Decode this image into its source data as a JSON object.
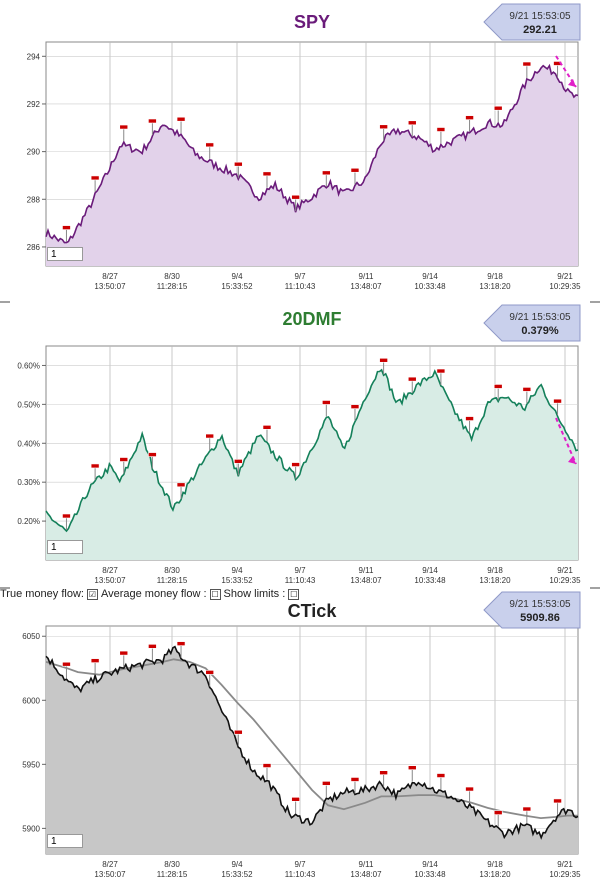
{
  "colors": {
    "spy_line": "#6a1b7a",
    "spy_fill": "#e2d2ea",
    "mf_line": "#14805a",
    "mf_fill": "#d8ece5",
    "ct_line": "#111111",
    "ct_fill": "#c7c7c7",
    "ct_avg": "#8a8a8a",
    "marker_red": "#cc0000",
    "arrow_magenta": "#e020c8",
    "badge_fill": "#c9d0ec"
  },
  "x_ticks": [
    {
      "date": "8/27",
      "time": "13:50:07"
    },
    {
      "date": "8/30",
      "time": "11:28:15"
    },
    {
      "date": "9/4",
      "time": "15:33:52"
    },
    {
      "date": "9/7",
      "time": "11:10:43"
    },
    {
      "date": "9/11",
      "time": "13:48:07"
    },
    {
      "date": "9/14",
      "time": "10:33:48"
    },
    {
      "date": "9/18",
      "time": "13:18:20"
    },
    {
      "date": "9/21",
      "time": "10:29:35"
    }
  ],
  "panels": {
    "spy": {
      "title": "SPY",
      "badge_time": "9/21 15:53:05",
      "badge_value": "292.21",
      "period": "1"
    },
    "mf": {
      "title": "20DMF",
      "badge_time": "9/21 15:53:05",
      "badge_value": "0.379%",
      "period": "1"
    },
    "ct": {
      "title": "CTick",
      "badge_time": "9/21 15:53:05",
      "badge_value": "5909.86",
      "period": "1"
    }
  },
  "controls": {
    "true_mf_label": "True money flow:",
    "avg_mf_label": "Average money flow :",
    "show_limits_label": "Show limits :",
    "true_mf_checked": "☑",
    "avg_mf_checked": "☐",
    "show_limits_checked": "☐"
  },
  "chart_data": [
    {
      "type": "area",
      "title": "SPY",
      "ylim": [
        285.2,
        294.6
      ],
      "yticks": [
        286,
        288,
        290,
        292,
        294
      ],
      "x": [
        0,
        0.04,
        0.08,
        0.12,
        0.14,
        0.18,
        0.22,
        0.26,
        0.28,
        0.32,
        0.36,
        0.4,
        0.43,
        0.47,
        0.5,
        0.53,
        0.56,
        0.6,
        0.63,
        0.66,
        0.7,
        0.73,
        0.76,
        0.8,
        0.83,
        0.86,
        0.9,
        0.93,
        0.96,
        0.98,
        1.0
      ],
      "values": [
        286.6,
        286.1,
        287.6,
        289.3,
        290.3,
        290.0,
        291.2,
        290.5,
        289.9,
        289.4,
        289.0,
        288.1,
        288.6,
        287.6,
        288.1,
        288.7,
        288.2,
        288.8,
        290.4,
        290.9,
        290.6,
        290.1,
        290.4,
        290.8,
        291.2,
        291.1,
        292.8,
        293.6,
        293.3,
        292.5,
        292.2
      ]
    },
    {
      "type": "area",
      "title": "20DMF",
      "ylim": [
        0.1,
        0.65
      ],
      "yticks": [
        "0.20%",
        "0.30%",
        "0.40%",
        "0.50%",
        "0.60%"
      ],
      "x": [
        0,
        0.04,
        0.08,
        0.12,
        0.14,
        0.18,
        0.2,
        0.24,
        0.27,
        0.3,
        0.33,
        0.36,
        0.4,
        0.43,
        0.47,
        0.5,
        0.53,
        0.56,
        0.6,
        0.63,
        0.66,
        0.7,
        0.73,
        0.76,
        0.8,
        0.83,
        0.86,
        0.9,
        0.93,
        0.96,
        0.98,
        1.0
      ],
      "values": [
        0.22,
        0.17,
        0.28,
        0.34,
        0.3,
        0.42,
        0.34,
        0.23,
        0.3,
        0.36,
        0.42,
        0.32,
        0.42,
        0.37,
        0.31,
        0.39,
        0.47,
        0.38,
        0.52,
        0.6,
        0.5,
        0.55,
        0.58,
        0.5,
        0.41,
        0.5,
        0.52,
        0.49,
        0.55,
        0.47,
        0.43,
        0.38
      ]
    },
    {
      "type": "area",
      "title": "CTick",
      "ylim": [
        5880,
        6058
      ],
      "yticks": [
        5900,
        5950,
        6000,
        6050
      ],
      "x": [
        0,
        0.04,
        0.06,
        0.1,
        0.14,
        0.18,
        0.22,
        0.24,
        0.27,
        0.3,
        0.33,
        0.36,
        0.39,
        0.42,
        0.46,
        0.5,
        0.53,
        0.56,
        0.6,
        0.63,
        0.66,
        0.7,
        0.73,
        0.76,
        0.8,
        0.83,
        0.86,
        0.9,
        0.93,
        0.96,
        0.98,
        1.0
      ],
      "values": [
        6035,
        6015,
        6008,
        6018,
        6024,
        6028,
        6032,
        6040,
        6028,
        6020,
        5992,
        5965,
        5945,
        5935,
        5910,
        5905,
        5922,
        5928,
        5930,
        5935,
        5926,
        5938,
        5930,
        5925,
        5915,
        5905,
        5896,
        5902,
        5895,
        5910,
        5915,
        5910
      ],
      "series_avg": [
        6030,
        6025,
        6022,
        6020,
        6024,
        6027,
        6030,
        6032,
        6030,
        6025,
        6012,
        5998,
        5985,
        5970,
        5950,
        5930,
        5918,
        5915,
        5920,
        5925,
        5925,
        5926,
        5926,
        5924,
        5920,
        5916,
        5913,
        5910,
        5908,
        5909,
        5910,
        5910
      ]
    }
  ]
}
